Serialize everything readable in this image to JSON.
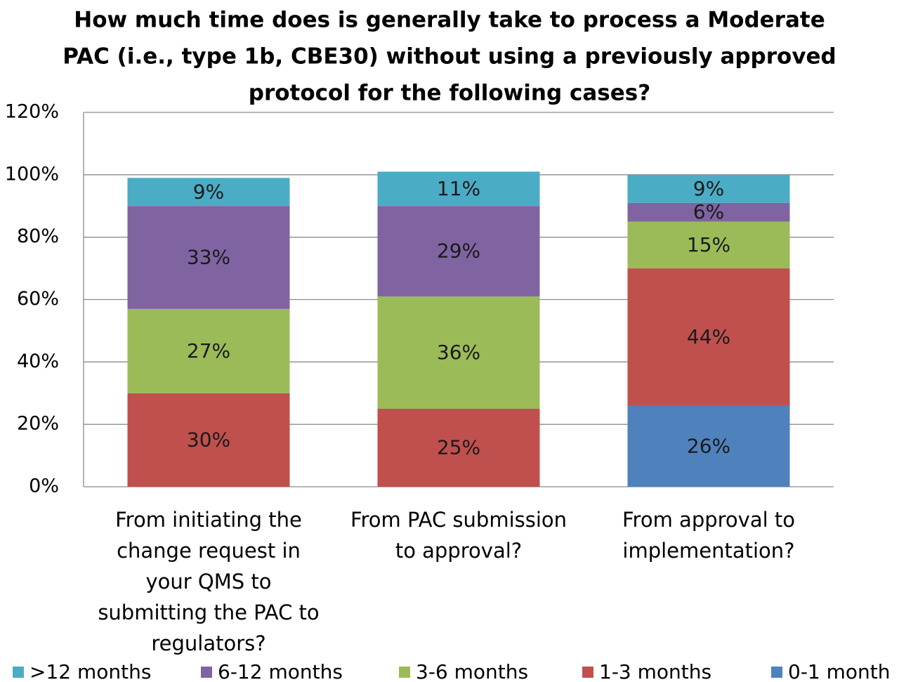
{
  "chart_data": {
    "type": "bar",
    "stacked": true,
    "title": "How much time does is generally take to process a Moderate PAC (i.e., type 1b, CBE30) without using a previously approved protocol for the following cases?",
    "title_lines": [
      "How much time does is generally take to process a Moderate",
      "PAC (i.e., type 1b, CBE30) without using a previously approved",
      "protocol for the following cases?"
    ],
    "categories": [
      "From initiating the change request in your QMS to submitting the PAC to regulators?",
      "From PAC submission to approval?",
      "From approval to implementation?"
    ],
    "category_lines": [
      [
        "From initiating the",
        "change request in",
        "your QMS to",
        "submitting the PAC to",
        "regulators?"
      ],
      [
        "From PAC submission",
        "to approval?"
      ],
      [
        "From approval to",
        "implementation?"
      ]
    ],
    "series": [
      {
        "name": "0-1 month",
        "values": [
          0,
          0,
          26
        ],
        "color": "#4F81BD"
      },
      {
        "name": "1-3 months",
        "values": [
          30,
          25,
          44
        ],
        "color": "#C0504D"
      },
      {
        "name": "3-6 months",
        "values": [
          27,
          36,
          15
        ],
        "color": "#9BBB59"
      },
      {
        "name": "6-12 months",
        "values": [
          33,
          29,
          6
        ],
        "color": "#8064A2"
      },
      {
        "name": ">12 months",
        "values": [
          9,
          11,
          9
        ],
        "color": "#4BACC6"
      }
    ],
    "value_unit": "%",
    "ylim": [
      0,
      120
    ],
    "yticks": [
      0,
      20,
      40,
      60,
      80,
      100,
      120
    ],
    "ytick_labels": [
      "0%",
      "20%",
      "40%",
      "60%",
      "80%",
      "100%",
      "120%"
    ],
    "legend_order": [
      ">12 months",
      "6-12 months",
      "3-6 months",
      "1-3 months",
      "0-1 month"
    ],
    "legend_position": "bottom",
    "grid": true,
    "xlabel": "",
    "ylabel": ""
  }
}
